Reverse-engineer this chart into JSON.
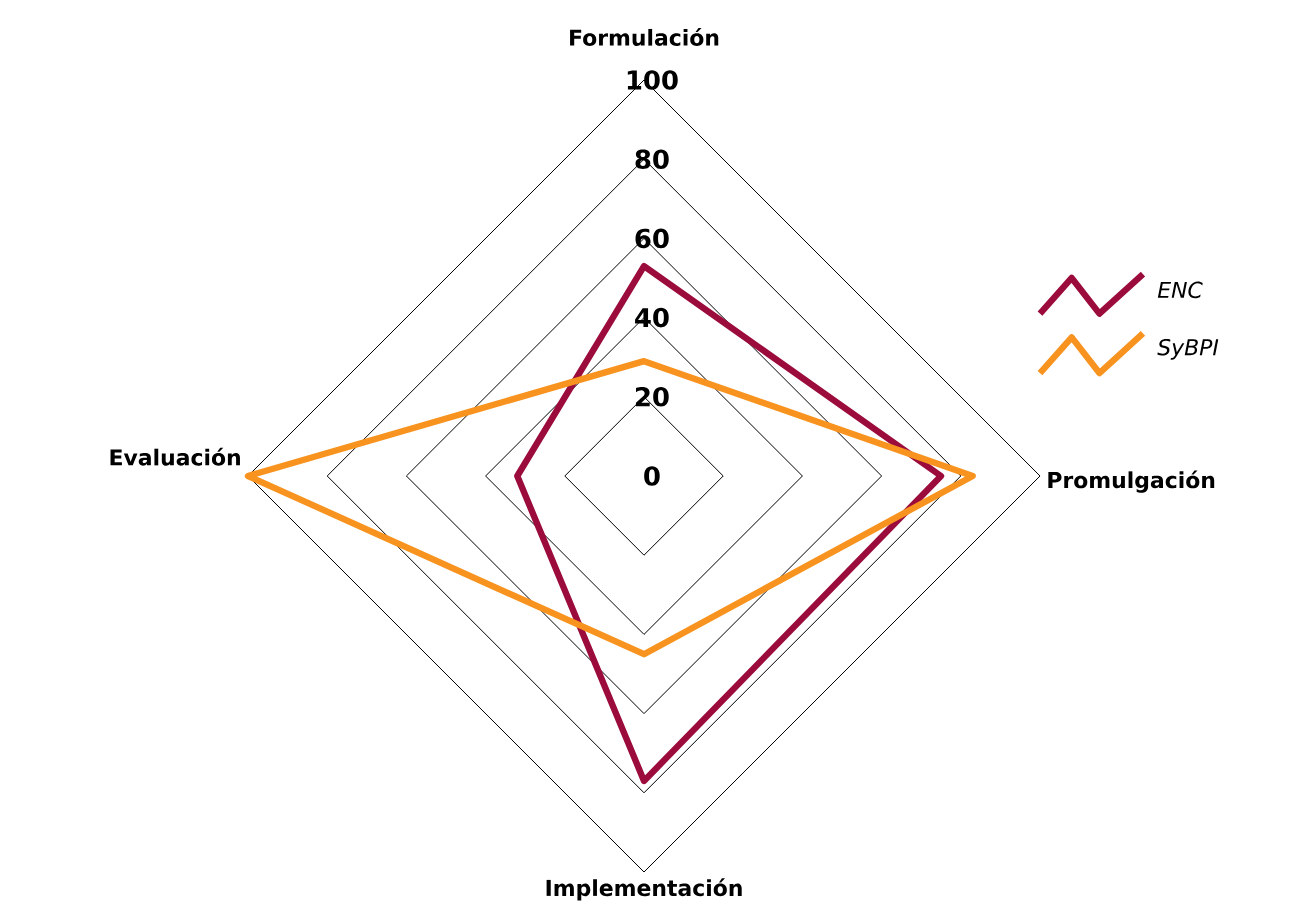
{
  "chart_data": {
    "type": "radar",
    "categories": [
      "Formulación",
      "Promulgación",
      "Implementación",
      "Evaluación"
    ],
    "series": [
      {
        "name": "ENC",
        "color": "#9b0c3c",
        "values": [
          53,
          75,
          77,
          32
        ]
      },
      {
        "name": "SyBPI",
        "color": "#f7931e",
        "values": [
          29,
          83,
          45,
          100
        ]
      }
    ],
    "ylim": [
      0,
      100
    ],
    "yticks": [
      0,
      20,
      40,
      60,
      80,
      100
    ],
    "grid": true,
    "legend": "right",
    "marker": "none",
    "line_style": "solid"
  }
}
